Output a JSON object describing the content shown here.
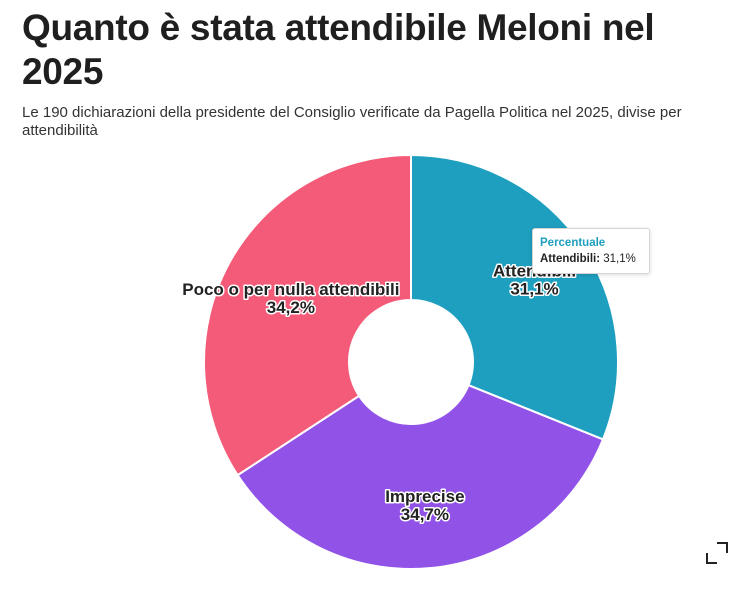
{
  "header": {
    "title": "Quanto è stata attendibile Meloni nel 2025",
    "subtitle": "Le 190 dichiarazioni della presidente del Consiglio verificate da Pagella Politica nel 2025, divise per attendibilità"
  },
  "tooltip": {
    "heading": "Percentuale",
    "name": "Attendibili:",
    "value": "31,1%"
  },
  "icons": {
    "expand": "expand-icon"
  },
  "chart_data": {
    "type": "pie",
    "title": "Quanto è stata attendibile Meloni nel 2025",
    "donut": true,
    "unit": "%",
    "categories": [
      "Attendibili",
      "Imprecise",
      "Poco o per nulla attendibili"
    ],
    "values": [
      31.1,
      34.7,
      34.2
    ],
    "value_labels": [
      "31,1%",
      "34,7%",
      "34,2%"
    ],
    "colors": [
      "#1e9fbf",
      "#9152e8",
      "#f45b78"
    ],
    "start_angle_deg": 0,
    "direction": "clockwise"
  }
}
